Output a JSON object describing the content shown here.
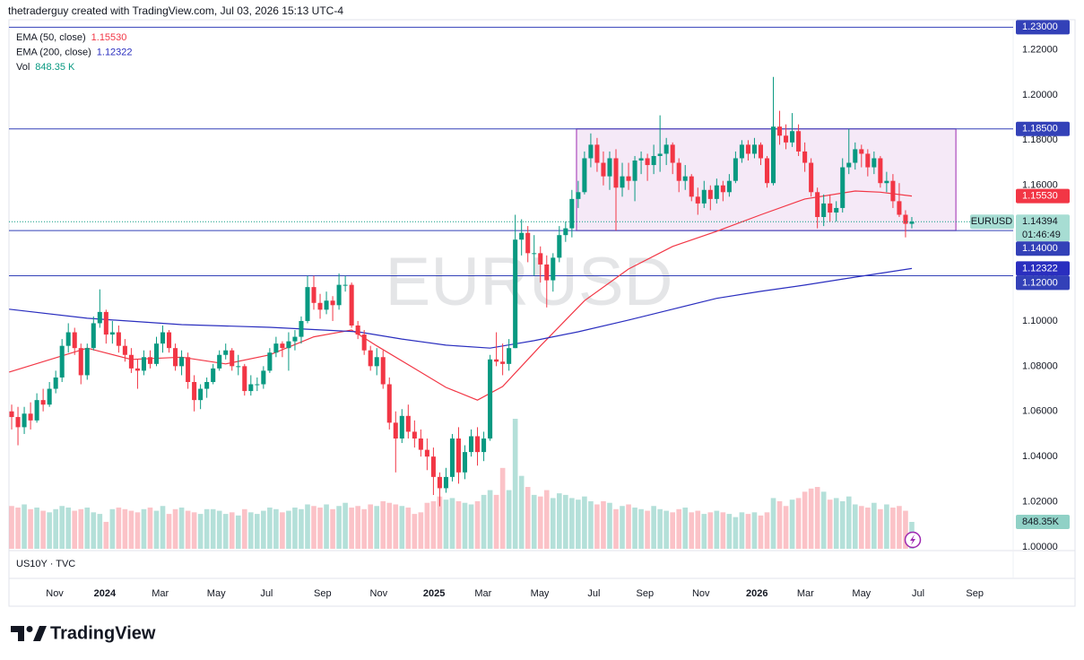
{
  "chart_data": {
    "type": "candlestick",
    "header": "thetraderguy created with TradingView.com, Jul 03, 2026 15:13 UTC-4",
    "symbol": "EURUSD",
    "lower_pane_label": "US10Y · TVC",
    "footer": "TradingView",
    "up_color": "#089981",
    "down_color": "#f23645",
    "xlim": [
      -0.43,
      159.1
    ],
    "ylim": [
      0.9984,
      1.2333
    ],
    "grid": false,
    "yticks": [
      {
        "value": 1.0,
        "label": "1.00000"
      },
      {
        "value": 1.02,
        "label": "1.02000"
      },
      {
        "value": 1.04,
        "label": "1.04000"
      },
      {
        "value": 1.06,
        "label": "1.06000"
      },
      {
        "value": 1.08,
        "label": "1.08000"
      },
      {
        "value": 1.1,
        "label": "1.10000"
      },
      {
        "value": 1.12,
        "label": "1.12000"
      },
      {
        "value": 1.14,
        "label": "1.14000"
      },
      {
        "value": 1.16,
        "label": "1.16000"
      },
      {
        "value": 1.18,
        "label": "1.18000"
      },
      {
        "value": 1.2,
        "label": "1.20000"
      },
      {
        "value": 1.22,
        "label": "1.22000"
      }
    ],
    "xticks": [
      {
        "value": 6.84,
        "label": "Nov"
      },
      {
        "value": 14.8,
        "label": "2024"
      },
      {
        "value": 23.6,
        "label": "Mar"
      },
      {
        "value": 32.5,
        "label": "May"
      },
      {
        "value": 40.5,
        "label": "Jul"
      },
      {
        "value": 49.4,
        "label": "Sep"
      },
      {
        "value": 58.3,
        "label": "Nov"
      },
      {
        "value": 67.1,
        "label": "2025"
      },
      {
        "value": 74.9,
        "label": "Mar"
      },
      {
        "value": 83.9,
        "label": "May"
      },
      {
        "value": 92.5,
        "label": "Jul"
      },
      {
        "value": 100.6,
        "label": "Sep"
      },
      {
        "value": 109.5,
        "label": "Nov"
      },
      {
        "value": 118.4,
        "label": "2026"
      },
      {
        "value": 126.1,
        "label": "Mar"
      },
      {
        "value": 135,
        "label": "May"
      },
      {
        "value": 144,
        "label": "Jul"
      },
      {
        "value": 153,
        "label": "Sep"
      }
    ],
    "ohlc": [
      [
        1.06,
        1.063,
        1.052,
        1.0575
      ],
      [
        1.0575,
        1.062,
        1.045,
        1.053
      ],
      [
        1.053,
        1.062,
        1.05,
        1.059
      ],
      [
        1.059,
        1.064,
        1.052,
        1.056
      ],
      [
        1.056,
        1.068,
        1.055,
        1.065
      ],
      [
        1.065,
        1.07,
        1.06,
        1.063
      ],
      [
        1.063,
        1.073,
        1.062,
        1.07
      ],
      [
        1.07,
        1.078,
        1.068,
        1.075
      ],
      [
        1.075,
        1.092,
        1.073,
        1.089
      ],
      [
        1.089,
        1.099,
        1.086,
        1.095
      ],
      [
        1.095,
        1.097,
        1.085,
        1.088
      ],
      [
        1.088,
        1.09,
        1.072,
        1.076
      ],
      [
        1.076,
        1.09,
        1.074,
        1.088
      ],
      [
        1.088,
        1.102,
        1.087,
        1.099
      ],
      [
        1.099,
        1.114,
        1.097,
        1.104
      ],
      [
        1.104,
        1.105,
        1.09,
        1.094
      ],
      [
        1.094,
        1.1,
        1.09,
        1.095
      ],
      [
        1.095,
        1.098,
        1.086,
        1.089
      ],
      [
        1.089,
        1.092,
        1.082,
        1.085
      ],
      [
        1.085,
        1.088,
        1.077,
        1.079
      ],
      [
        1.079,
        1.083,
        1.07,
        1.078
      ],
      [
        1.078,
        1.087,
        1.076,
        1.084
      ],
      [
        1.084,
        1.087,
        1.079,
        1.081
      ],
      [
        1.081,
        1.093,
        1.08,
        1.09
      ],
      [
        1.09,
        1.098,
        1.086,
        1.095
      ],
      [
        1.095,
        1.096,
        1.086,
        1.088
      ],
      [
        1.088,
        1.09,
        1.078,
        1.08
      ],
      [
        1.08,
        1.087,
        1.076,
        1.084
      ],
      [
        1.084,
        1.086,
        1.07,
        1.073
      ],
      [
        1.073,
        1.076,
        1.06,
        1.065
      ],
      [
        1.065,
        1.072,
        1.061,
        1.07
      ],
      [
        1.07,
        1.075,
        1.066,
        1.073
      ],
      [
        1.073,
        1.081,
        1.072,
        1.079
      ],
      [
        1.079,
        1.087,
        1.078,
        1.085
      ],
      [
        1.085,
        1.09,
        1.083,
        1.087
      ],
      [
        1.087,
        1.088,
        1.078,
        1.08
      ],
      [
        1.08,
        1.085,
        1.076,
        1.08
      ],
      [
        1.08,
        1.081,
        1.067,
        1.069
      ],
      [
        1.069,
        1.076,
        1.067,
        1.072
      ],
      [
        1.072,
        1.075,
        1.069,
        1.072
      ],
      [
        1.072,
        1.08,
        1.07,
        1.078
      ],
      [
        1.078,
        1.088,
        1.077,
        1.086
      ],
      [
        1.086,
        1.093,
        1.084,
        1.09
      ],
      [
        1.09,
        1.091,
        1.084,
        1.088
      ],
      [
        1.088,
        1.095,
        1.078,
        1.091
      ],
      [
        1.091,
        1.096,
        1.087,
        1.093
      ],
      [
        1.093,
        1.102,
        1.09,
        1.1
      ],
      [
        1.1,
        1.12,
        1.099,
        1.115
      ],
      [
        1.115,
        1.12,
        1.105,
        1.108
      ],
      [
        1.108,
        1.112,
        1.101,
        1.105
      ],
      [
        1.105,
        1.113,
        1.103,
        1.109
      ],
      [
        1.109,
        1.111,
        1.1,
        1.107
      ],
      [
        1.107,
        1.121,
        1.105,
        1.116
      ],
      [
        1.116,
        1.12,
        1.113,
        1.116
      ],
      [
        1.116,
        1.117,
        1.097,
        1.098
      ],
      [
        1.098,
        1.1,
        1.092,
        1.094
      ],
      [
        1.094,
        1.096,
        1.085,
        1.087
      ],
      [
        1.087,
        1.089,
        1.078,
        1.08
      ],
      [
        1.08,
        1.088,
        1.076,
        1.084
      ],
      [
        1.084,
        1.087,
        1.07,
        1.072
      ],
      [
        1.072,
        1.075,
        1.052,
        1.055
      ],
      [
        1.055,
        1.06,
        1.033,
        1.048
      ],
      [
        1.048,
        1.061,
        1.046,
        1.058
      ],
      [
        1.058,
        1.063,
        1.048,
        1.051
      ],
      [
        1.051,
        1.056,
        1.044,
        1.048
      ],
      [
        1.048,
        1.052,
        1.04,
        1.043
      ],
      [
        1.043,
        1.048,
        1.034,
        1.04
      ],
      [
        1.04,
        1.044,
        1.023,
        1.031
      ],
      [
        1.031,
        1.033,
        1.018,
        1.026
      ],
      [
        1.026,
        1.035,
        1.024,
        1.031
      ],
      [
        1.031,
        1.05,
        1.029,
        1.048
      ],
      [
        1.048,
        1.053,
        1.028,
        1.033
      ],
      [
        1.033,
        1.045,
        1.03,
        1.042
      ],
      [
        1.042,
        1.052,
        1.04,
        1.049
      ],
      [
        1.049,
        1.053,
        1.036,
        1.042
      ],
      [
        1.042,
        1.051,
        1.038,
        1.048
      ],
      [
        1.048,
        1.085,
        1.047,
        1.083
      ],
      [
        1.083,
        1.095,
        1.08,
        1.082
      ],
      [
        1.082,
        1.09,
        1.076,
        1.081
      ],
      [
        1.081,
        1.092,
        1.078,
        1.088
      ],
      [
        1.088,
        1.147,
        1.088,
        1.136
      ],
      [
        1.136,
        1.145,
        1.129,
        1.139
      ],
      [
        1.139,
        1.142,
        1.126,
        1.13
      ],
      [
        1.13,
        1.138,
        1.12,
        1.13
      ],
      [
        1.13,
        1.133,
        1.117,
        1.125
      ],
      [
        1.125,
        1.129,
        1.106,
        1.118
      ],
      [
        1.118,
        1.13,
        1.113,
        1.128
      ],
      [
        1.128,
        1.142,
        1.126,
        1.138
      ],
      [
        1.138,
        1.144,
        1.135,
        1.141
      ],
      [
        1.141,
        1.158,
        1.137,
        1.154
      ],
      [
        1.154,
        1.162,
        1.15,
        1.157
      ],
      [
        1.157,
        1.175,
        1.156,
        1.172
      ],
      [
        1.172,
        1.183,
        1.168,
        1.178
      ],
      [
        1.178,
        1.181,
        1.166,
        1.17
      ],
      [
        1.17,
        1.175,
        1.16,
        1.164
      ],
      [
        1.164,
        1.175,
        1.158,
        1.172
      ],
      [
        1.172,
        1.176,
        1.14,
        1.159
      ],
      [
        1.159,
        1.17,
        1.155,
        1.164
      ],
      [
        1.164,
        1.17,
        1.158,
        1.162
      ],
      [
        1.162,
        1.173,
        1.153,
        1.171
      ],
      [
        1.171,
        1.175,
        1.165,
        1.172
      ],
      [
        1.172,
        1.174,
        1.162,
        1.169
      ],
      [
        1.169,
        1.178,
        1.165,
        1.173
      ],
      [
        1.173,
        1.191,
        1.166,
        1.174
      ],
      [
        1.174,
        1.181,
        1.169,
        1.178
      ],
      [
        1.178,
        1.179,
        1.165,
        1.17
      ],
      [
        1.17,
        1.172,
        1.157,
        1.162
      ],
      [
        1.162,
        1.169,
        1.158,
        1.164
      ],
      [
        1.164,
        1.165,
        1.153,
        1.155
      ],
      [
        1.155,
        1.159,
        1.147,
        1.152
      ],
      [
        1.152,
        1.162,
        1.15,
        1.158
      ],
      [
        1.158,
        1.16,
        1.149,
        1.154
      ],
      [
        1.154,
        1.163,
        1.152,
        1.16
      ],
      [
        1.16,
        1.162,
        1.153,
        1.157
      ],
      [
        1.157,
        1.165,
        1.155,
        1.162
      ],
      [
        1.162,
        1.175,
        1.161,
        1.172
      ],
      [
        1.172,
        1.18,
        1.17,
        1.178
      ],
      [
        1.178,
        1.18,
        1.171,
        1.174
      ],
      [
        1.174,
        1.181,
        1.172,
        1.178
      ],
      [
        1.178,
        1.179,
        1.169,
        1.172
      ],
      [
        1.172,
        1.173,
        1.159,
        1.161
      ],
      [
        1.161,
        1.208,
        1.16,
        1.186
      ],
      [
        1.186,
        1.193,
        1.178,
        1.182
      ],
      [
        1.182,
        1.187,
        1.176,
        1.179
      ],
      [
        1.179,
        1.192,
        1.177,
        1.184
      ],
      [
        1.184,
        1.187,
        1.173,
        1.175
      ],
      [
        1.175,
        1.179,
        1.166,
        1.17
      ],
      [
        1.17,
        1.172,
        1.155,
        1.157
      ],
      [
        1.157,
        1.159,
        1.141,
        1.146
      ],
      [
        1.146,
        1.156,
        1.142,
        1.152
      ],
      [
        1.152,
        1.156,
        1.144,
        1.148
      ],
      [
        1.148,
        1.153,
        1.144,
        1.15
      ],
      [
        1.15,
        1.172,
        1.148,
        1.168
      ],
      [
        1.168,
        1.185,
        1.165,
        1.17
      ],
      [
        1.17,
        1.179,
        1.167,
        1.176
      ],
      [
        1.176,
        1.178,
        1.168,
        1.174
      ],
      [
        1.174,
        1.176,
        1.164,
        1.168
      ],
      [
        1.168,
        1.175,
        1.165,
        1.172
      ],
      [
        1.172,
        1.173,
        1.159,
        1.161
      ],
      [
        1.161,
        1.166,
        1.157,
        1.162
      ],
      [
        1.162,
        1.165,
        1.15,
        1.153
      ],
      [
        1.153,
        1.161,
        1.146,
        1.147
      ],
      [
        1.147,
        1.149,
        1.137,
        1.143
      ],
      [
        1.143,
        1.146,
        1.141,
        1.14394
      ]
    ],
    "volume": {
      "name": "Vol",
      "legend_label": "848.35 K",
      "scale_label": "848.35K",
      "values": [
        1350,
        1300,
        1400,
        1250,
        1300,
        1200,
        1150,
        1250,
        1350,
        1300,
        1200,
        1250,
        1300,
        1150,
        1100,
        850,
        1250,
        1300,
        1250,
        1200,
        1150,
        1250,
        1300,
        1200,
        1350,
        1100,
        1250,
        1300,
        1200,
        1150,
        1100,
        1250,
        1250,
        1200,
        1100,
        1150,
        1050,
        1250,
        1150,
        1100,
        1200,
        1300,
        1250,
        1150,
        1200,
        1300,
        1250,
        1400,
        1350,
        1300,
        1400,
        1250,
        1350,
        1450,
        1300,
        1350,
        1250,
        1400,
        1350,
        1500,
        1450,
        1400,
        1350,
        1300,
        1100,
        1150,
        1450,
        1500,
        1650,
        1550,
        1600,
        1500,
        1450,
        1400,
        1500,
        1700,
        1850,
        1700,
        2550,
        1850,
        4100,
        2300,
        1950,
        1700,
        1650,
        1850,
        1600,
        1750,
        1700,
        1600,
        1550,
        1650,
        1500,
        1400,
        1500,
        1450,
        1250,
        1350,
        1400,
        1300,
        1250,
        1200,
        1350,
        1250,
        1200,
        1150,
        1250,
        1300,
        1150,
        1200,
        1100,
        1150,
        1200,
        1150,
        1100,
        1000,
        1150,
        1100,
        1150,
        1050,
        1150,
        1600,
        1500,
        1350,
        1550,
        1600,
        1800,
        1900,
        1950,
        1800,
        1550,
        1600,
        1500,
        1650,
        1400,
        1350,
        1300,
        1450,
        1250,
        1400,
        1300,
        1350,
        1200,
        848.35
      ]
    },
    "series": [
      {
        "name": "EMA (50, close)",
        "color": "#f23645",
        "value_label": "1.15530",
        "x": [
          -0.4,
          12,
          19,
          27,
          34,
          41,
          48,
          54,
          58,
          64,
          69,
          74,
          78,
          84,
          91,
          98,
          105,
          112,
          119,
          126,
          134,
          138,
          143
        ],
        "values": [
          1.0774,
          1.088,
          1.083,
          1.084,
          1.081,
          1.085,
          1.093,
          1.096,
          1.089,
          1.079,
          1.0706,
          1.065,
          1.071,
          1.089,
          1.109,
          1.123,
          1.133,
          1.1397,
          1.147,
          1.154,
          1.1575,
          1.157,
          1.1553
        ]
      },
      {
        "name": "EMA (200, close)",
        "color": "#2a2ebf",
        "x": [
          -0.4,
          12,
          27,
          41,
          55,
          62,
          69,
          76,
          83,
          90,
          98,
          105,
          112,
          119,
          126,
          133,
          143
        ],
        "values": [
          1.1052,
          1.1012,
          1.0984,
          1.0972,
          1.0952,
          1.092,
          1.0893,
          1.088,
          1.0913,
          1.0952,
          1.1004,
          1.1052,
          1.11,
          1.1131,
          1.1159,
          1.119,
          1.12322
        ]
      }
    ],
    "levels": [
      {
        "value": 1.23,
        "label": "1.23000"
      },
      {
        "value": 1.185,
        "label": "1.18500"
      },
      {
        "value": 1.14,
        "label": "1.14000"
      },
      {
        "value": 1.12,
        "label": "1.12000"
      }
    ],
    "level_color": "#3341b8",
    "range_box": {
      "x": [
        89.73,
        150.0
      ],
      "y": [
        1.14,
        1.185
      ],
      "color": "#9c27b0"
    },
    "last_price": 1.14394,
    "countdown": "01:46:49"
  }
}
